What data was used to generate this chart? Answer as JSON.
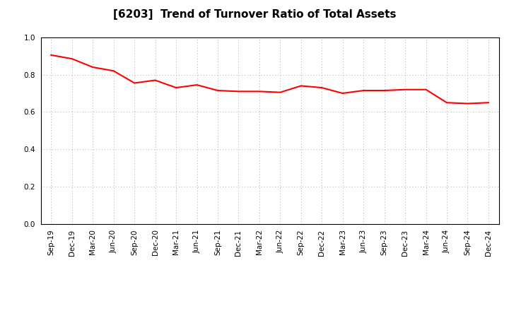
{
  "title": "[6203]  Trend of Turnover Ratio of Total Assets",
  "x_labels": [
    "Sep-19",
    "Dec-19",
    "Mar-20",
    "Jun-20",
    "Sep-20",
    "Dec-20",
    "Mar-21",
    "Jun-21",
    "Sep-21",
    "Dec-21",
    "Mar-22",
    "Jun-22",
    "Sep-22",
    "Dec-22",
    "Mar-23",
    "Jun-23",
    "Sep-23",
    "Dec-23",
    "Mar-24",
    "Jun-24",
    "Sep-24",
    "Dec-24"
  ],
  "y_values": [
    0.905,
    0.885,
    0.84,
    0.82,
    0.755,
    0.77,
    0.73,
    0.745,
    0.715,
    0.71,
    0.71,
    0.705,
    0.74,
    0.73,
    0.7,
    0.715,
    0.715,
    0.72,
    0.72,
    0.65,
    0.645,
    0.65
  ],
  "line_color": "#FF0000",
  "line_width": 1.5,
  "ylim": [
    0.0,
    1.0
  ],
  "yticks": [
    0.0,
    0.2,
    0.4,
    0.6,
    0.8,
    1.0
  ],
  "grid_color": "#aaaaaa",
  "bg_color": "#ffffff",
  "title_fontsize": 11,
  "tick_fontsize": 7.5
}
